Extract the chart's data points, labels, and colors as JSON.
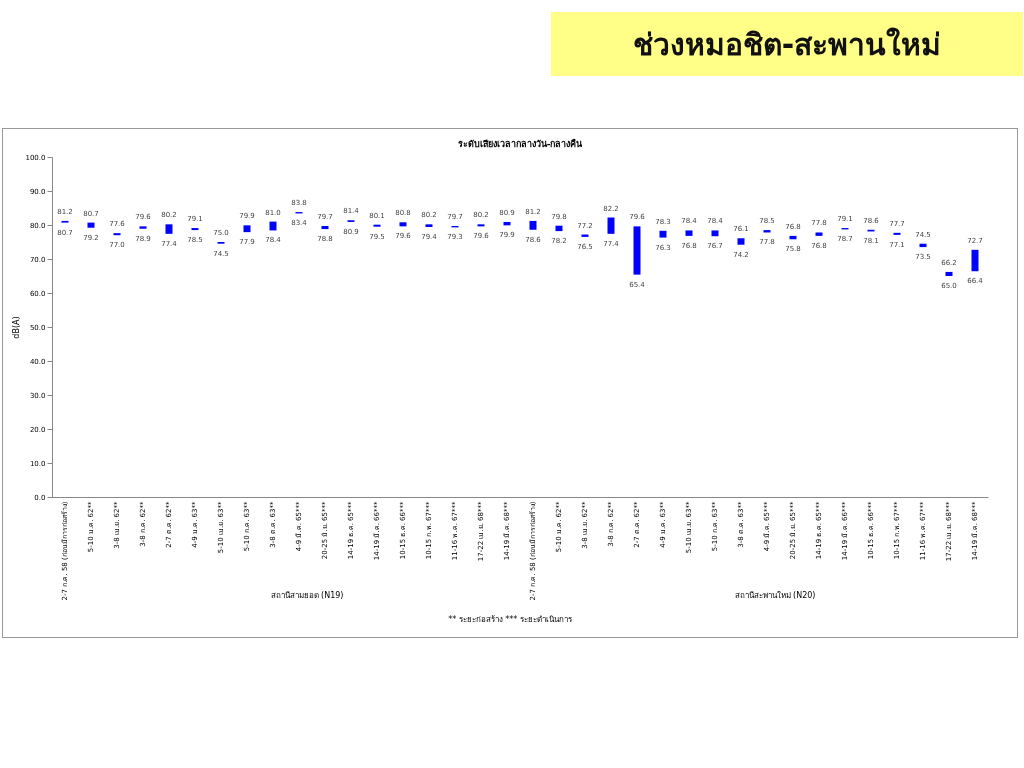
{
  "chart_data": {
    "type": "bar",
    "title": "ช่วงหมอชิต-สะพานใหม่",
    "subtitle": "ระดับเสียงเวลากลางวัน-กลางคืน",
    "ylabel": "dB(A)",
    "categories": [
      "2-7 ก.ค. 58 (ก่อนมีการก่อสร้าง)",
      "5-10 ม.ค. 62**",
      "3-8 เม.ย. 62**",
      "3-8 ก.ค. 62**",
      "2-7 ต.ค. 62**",
      "4-9 ม.ค. 63**",
      "5-10 เม.ย. 63**",
      "5-10 ก.ค. 63**",
      "3-8 ต.ค. 63**",
      "4-9 มี.ค. 65***",
      "20-25 มิ.ย. 65***",
      "14-19 ธ.ค. 65***",
      "14-19 มี.ค. 66***",
      "10-15 ธ.ค. 66***",
      "10-15 ก.พ. 67***",
      "11-16 พ.ค. 67***",
      "17-22 เม.ย. 68***",
      "14-19 มี.ค. 68***",
      "2-7 ก.ค. 58 (ก่อนมีการก่อสร้าง)",
      "5-10 ม.ค. 62**",
      "3-8 เม.ย. 62**",
      "3-8 ก.ค. 62**",
      "2-7 ต.ค. 62**",
      "4-9 ม.ค. 63**",
      "5-10 เม.ย. 63**",
      "5-10 ก.ค. 63**",
      "3-8 ต.ค. 63**",
      "4-9 มี.ค. 65***",
      "20-25 มิ.ย. 65***",
      "14-19 ธ.ค. 65***",
      "14-19 มี.ค. 66***",
      "10-15 ธ.ค. 66***",
      "10-15 ก.พ. 67***",
      "11-16 พ.ค. 67***",
      "17-22 เม.ย. 68***",
      "14-19 มี.ค. 68***"
    ],
    "base": [
      80.7,
      79.2,
      77.0,
      78.9,
      77.4,
      78.5,
      74.5,
      77.9,
      78.4,
      83.4,
      78.8,
      80.9,
      79.5,
      79.6,
      79.4,
      79.3,
      79.6,
      79.9,
      78.6,
      78.2,
      76.5,
      77.4,
      65.4,
      76.3,
      76.8,
      76.7,
      74.2,
      77.8,
      75.8,
      76.8,
      78.7,
      78.1,
      77.1,
      73.5,
      65.0,
      66.4
    ],
    "values": [
      0.5,
      1.5,
      0.6,
      0.7,
      2.8,
      0.6,
      0.5,
      2.0,
      2.6,
      0.4,
      0.9,
      0.5,
      0.6,
      1.2,
      0.8,
      0.4,
      0.6,
      1.0,
      2.6,
      1.6,
      0.7,
      4.8,
      14.2,
      2.0,
      1.6,
      1.7,
      1.9,
      0.7,
      1.0,
      1.0,
      0.4,
      0.5,
      0.6,
      1.0,
      1.2,
      6.3
    ],
    "color": "#0000ff",
    "ylim": [
      0,
      100
    ],
    "yticks": [
      {
        "value": 0,
        "label": "0.0"
      },
      {
        "value": 10,
        "label": "10.0"
      },
      {
        "value": 20,
        "label": "20.0"
      },
      {
        "value": 30,
        "label": "30.0"
      },
      {
        "value": 40,
        "label": "40.0"
      },
      {
        "value": 50,
        "label": "50.0"
      },
      {
        "value": 60,
        "label": "60.0"
      },
      {
        "value": 70,
        "label": "70.0"
      },
      {
        "value": 80,
        "label": "80.0"
      },
      {
        "value": 90,
        "label": "90.0"
      },
      {
        "value": 100,
        "label": "100.0"
      }
    ],
    "grid": false,
    "annotations": [
      "สถานีสามยอด (N19)",
      "สถานีสะพานใหม่ (N20)",
      "** ระยะก่อสร้าง    *** ระยะดำเนินการ",
      {
        "text": "81.2",
        "y": 81.2
      },
      {
        "text": "80.7",
        "y": 80.7
      },
      {
        "text": "80.7",
        "y": 80.7
      },
      {
        "text": "79.2",
        "y": 79.2
      },
      {
        "text": "77.6",
        "y": 77.6
      },
      {
        "text": "77.0",
        "y": 77.0
      },
      {
        "text": "79.6",
        "y": 79.6
      },
      {
        "text": "78.9",
        "y": 78.9
      },
      {
        "text": "80.2",
        "y": 80.2
      },
      {
        "text": "77.4",
        "y": 77.4
      },
      {
        "text": "79.1",
        "y": 79.1
      },
      {
        "text": "78.5",
        "y": 78.5
      },
      {
        "text": "75.0",
        "y": 75.0
      },
      {
        "text": "74.5",
        "y": 74.5
      },
      {
        "text": "79.9",
        "y": 79.9
      },
      {
        "text": "77.9",
        "y": 77.9
      },
      {
        "text": "81.0",
        "y": 81.0
      },
      {
        "text": "78.4",
        "y": 78.4
      },
      {
        "text": "83.8",
        "y": 83.8
      },
      {
        "text": "83.4",
        "y": 83.4
      },
      {
        "text": "79.7",
        "y": 79.7
      },
      {
        "text": "78.8",
        "y": 78.8
      },
      {
        "text": "81.4",
        "y": 81.4
      },
      {
        "text": "80.9",
        "y": 80.9
      },
      {
        "text": "80.1",
        "y": 80.1
      },
      {
        "text": "79.5",
        "y": 79.5
      },
      {
        "text": "80.8",
        "y": 80.8
      },
      {
        "text": "79.6",
        "y": 79.6
      },
      {
        "text": "80.2",
        "y": 80.2
      },
      {
        "text": "79.4",
        "y": 79.4
      },
      {
        "text": "79.7",
        "y": 79.7
      },
      {
        "text": "79.3",
        "y": 79.3
      },
      {
        "text": "80.2",
        "y": 80.2
      },
      {
        "text": "79.6",
        "y": 79.6
      },
      {
        "text": "80.9",
        "y": 80.9
      },
      {
        "text": "79.9",
        "y": 79.9
      },
      {
        "text": "81.2",
        "y": 81.2
      },
      {
        "text": "78.6",
        "y": 78.6
      },
      {
        "text": "79.8",
        "y": 79.8
      },
      {
        "text": "78.2",
        "y": 78.2
      },
      {
        "text": "77.2",
        "y": 77.2
      },
      {
        "text": "76.5",
        "y": 76.5
      },
      {
        "text": "82.2",
        "y": 82.2
      },
      {
        "text": "77.4",
        "y": 77.4
      },
      {
        "text": "79.6",
        "y": 79.6
      },
      {
        "text": "65.4",
        "y": 65.4
      },
      {
        "text": "78.3",
        "y": 78.3
      },
      {
        "text": "76.3",
        "y": 76.3
      },
      {
        "text": "78.4",
        "y": 78.4
      },
      {
        "text": "76.8",
        "y": 76.8
      },
      {
        "text": "78.4",
        "y": 78.4
      },
      {
        "text": "76.7",
        "y": 76.7
      },
      {
        "text": "76.1",
        "y": 76.1
      },
      {
        "text": "74.2",
        "y": 74.2
      },
      {
        "text": "78.5",
        "y": 78.5
      },
      {
        "text": "77.8",
        "y": 77.8
      },
      {
        "text": "76.8",
        "y": 76.8
      },
      {
        "text": "75.8",
        "y": 75.8
      },
      {
        "text": "77.8",
        "y": 77.8
      },
      {
        "text": "76.8",
        "y": 76.8
      },
      {
        "text": "79.1",
        "y": 79.1
      },
      {
        "text": "78.7",
        "y": 78.7
      },
      {
        "text": "78.6",
        "y": 78.6
      },
      {
        "text": "78.1",
        "y": 78.1
      },
      {
        "text": "77.7",
        "y": 77.7
      },
      {
        "text": "77.1",
        "y": 77.1
      },
      {
        "text": "74.5",
        "y": 74.5
      },
      {
        "text": "73.5",
        "y": 73.5
      },
      {
        "text": "66.2",
        "y": 66.2
      },
      {
        "text": "65.0",
        "y": 65.0
      },
      {
        "text": "72.7",
        "y": 72.7
      },
      {
        "text": "66.4",
        "y": 66.4
      }
    ]
  }
}
